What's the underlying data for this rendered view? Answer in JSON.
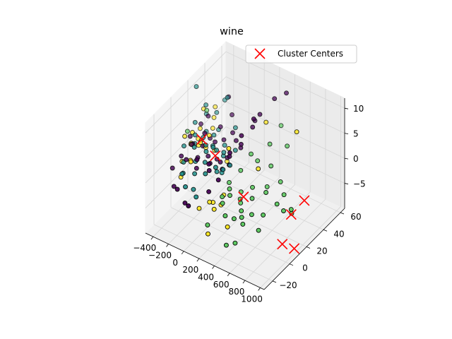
{
  "chart_data": {
    "type": "scatter",
    "projection": "3d",
    "title": "wine",
    "xlabel": "",
    "ylabel": "",
    "zlabel": "",
    "xlim": [
      -500,
      1050
    ],
    "ylim": [
      -30,
      65
    ],
    "zlim": [
      -10,
      12
    ],
    "x_ticks": [
      "−400",
      "−200",
      "0",
      "200",
      "400",
      "600",
      "800",
      "1000"
    ],
    "y_ticks": [
      "−20",
      "0",
      "20",
      "40",
      "60"
    ],
    "z_ticks": [
      "−5",
      "0",
      "5",
      "10"
    ],
    "grid": true,
    "legend": {
      "position": "top-right",
      "entries": [
        "Cluster Centers"
      ]
    },
    "colors": {
      "cluster_0": "#440154",
      "cluster_1": "#21918c",
      "cluster_2": "#5ec962",
      "cluster_3": "#fde725",
      "marker_edge": "#000000",
      "centers": "#ff0000",
      "pane": "#f2f2f2",
      "grid": "#e0e0e0"
    },
    "series": [
      {
        "cluster": 3,
        "color": "#fde725",
        "points": [
          [
            -460,
            35,
            4
          ],
          [
            -450,
            30,
            1
          ],
          [
            -440,
            20,
            2
          ],
          [
            -430,
            10,
            3
          ],
          [
            -420,
            25,
            0
          ],
          [
            -420,
            45,
            3
          ],
          [
            -410,
            5,
            -1
          ],
          [
            -400,
            15,
            1
          ],
          [
            -395,
            30,
            -2
          ],
          [
            -380,
            40,
            2
          ],
          [
            -370,
            0,
            -3
          ],
          [
            -360,
            20,
            0
          ],
          [
            -350,
            10,
            2
          ],
          [
            -340,
            35,
            1
          ],
          [
            -320,
            25,
            -1
          ],
          [
            -300,
            5,
            0
          ],
          [
            -280,
            15,
            2
          ],
          [
            -260,
            30,
            -2
          ],
          [
            -240,
            0,
            1
          ],
          [
            -220,
            20,
            3
          ],
          [
            50,
            0,
            -5
          ],
          [
            60,
            -5,
            -4
          ],
          [
            80,
            10,
            -5
          ],
          [
            100,
            5,
            -6
          ],
          [
            120,
            -5,
            -5
          ],
          [
            -100,
            30,
            -3
          ],
          [
            -20,
            -10,
            -5
          ],
          [
            200,
            5,
            6
          ],
          [
            300,
            40,
            6
          ],
          [
            150,
            -15,
            -8
          ],
          [
            350,
            -10,
            -6
          ],
          [
            420,
            20,
            1
          ],
          [
            700,
            40,
            7
          ]
        ]
      },
      {
        "cluster": 2,
        "color": "#5ec962",
        "points": [
          [
            -450,
            15,
            3
          ],
          [
            -420,
            35,
            4
          ],
          [
            -380,
            25,
            0
          ],
          [
            150,
            10,
            -2
          ],
          [
            170,
            0,
            -3
          ],
          [
            190,
            20,
            -1
          ],
          [
            210,
            5,
            -2
          ],
          [
            230,
            -5,
            -3
          ],
          [
            250,
            15,
            -4
          ],
          [
            270,
            0,
            -2
          ],
          [
            300,
            10,
            -5
          ],
          [
            320,
            -10,
            -4
          ],
          [
            350,
            5,
            -3
          ],
          [
            380,
            -5,
            -5
          ],
          [
            400,
            15,
            -2
          ],
          [
            420,
            0,
            -4
          ],
          [
            450,
            10,
            -3
          ],
          [
            480,
            -5,
            -4
          ],
          [
            500,
            5,
            -5
          ],
          [
            520,
            20,
            -3
          ],
          [
            550,
            -10,
            -4
          ],
          [
            300,
            30,
            0
          ],
          [
            350,
            40,
            2
          ],
          [
            200,
            -20,
            -5
          ],
          [
            420,
            35,
            -1
          ],
          [
            480,
            25,
            -3
          ],
          [
            600,
            30,
            -2
          ],
          [
            650,
            5,
            -4
          ],
          [
            700,
            25,
            -3
          ],
          [
            500,
            -25,
            -6
          ],
          [
            560,
            -20,
            -6
          ],
          [
            700,
            -5,
            -5
          ],
          [
            720,
            15,
            -3
          ],
          [
            750,
            20,
            -5
          ],
          [
            800,
            25,
            -6
          ],
          [
            850,
            20,
            -4
          ],
          [
            520,
            45,
            2
          ],
          [
            330,
            55,
            3
          ],
          [
            270,
            25,
            2
          ]
        ]
      },
      {
        "cluster": 1,
        "color": "#21918c",
        "points": [
          [
            -480,
            40,
            2
          ],
          [
            -460,
            25,
            3
          ],
          [
            -440,
            10,
            1
          ],
          [
            -430,
            35,
            5
          ],
          [
            -410,
            20,
            0
          ],
          [
            -400,
            45,
            2
          ],
          [
            -390,
            5,
            -1
          ],
          [
            -370,
            30,
            1
          ],
          [
            -350,
            15,
            3
          ],
          [
            -340,
            0,
            -2
          ],
          [
            -320,
            40,
            0
          ],
          [
            -300,
            20,
            2
          ],
          [
            -290,
            10,
            -1
          ],
          [
            -270,
            30,
            1
          ],
          [
            -250,
            5,
            3
          ],
          [
            -230,
            25,
            0
          ],
          [
            -210,
            15,
            2
          ],
          [
            -190,
            0,
            -1
          ],
          [
            -170,
            20,
            1
          ],
          [
            -150,
            10,
            2
          ],
          [
            -130,
            30,
            0
          ],
          [
            -110,
            5,
            1
          ],
          [
            -90,
            25,
            -1
          ],
          [
            -70,
            15,
            2
          ],
          [
            -50,
            0,
            0
          ],
          [
            -30,
            20,
            1
          ],
          [
            -10,
            10,
            -1
          ],
          [
            10,
            30,
            0
          ],
          [
            30,
            5,
            1
          ],
          [
            50,
            20,
            -1
          ],
          [
            70,
            10,
            0
          ],
          [
            -260,
            45,
            6
          ],
          [
            -500,
            30,
            9
          ],
          [
            -350,
            50,
            4
          ],
          [
            -100,
            40,
            2
          ],
          [
            0,
            15,
            -2
          ],
          [
            -200,
            -10,
            -2
          ],
          [
            -150,
            -5,
            -3
          ],
          [
            -60,
            -10,
            -3
          ],
          [
            -300,
            -5,
            -1
          ]
        ]
      },
      {
        "cluster": 0,
        "color": "#440154",
        "points": [
          [
            -470,
            20,
            1
          ],
          [
            -440,
            30,
            2
          ],
          [
            -420,
            5,
            0
          ],
          [
            -400,
            35,
            3
          ],
          [
            -380,
            15,
            1
          ],
          [
            -360,
            25,
            -1
          ],
          [
            -340,
            10,
            2
          ],
          [
            -320,
            30,
            0
          ],
          [
            -300,
            0,
            1
          ],
          [
            -280,
            20,
            3
          ],
          [
            -260,
            10,
            0
          ],
          [
            -240,
            35,
            2
          ],
          [
            -220,
            5,
            -1
          ],
          [
            -200,
            25,
            1
          ],
          [
            -180,
            15,
            0
          ],
          [
            -160,
            0,
            2
          ],
          [
            -140,
            30,
            1
          ],
          [
            -120,
            20,
            -1
          ],
          [
            -100,
            10,
            0
          ],
          [
            -80,
            35,
            2
          ],
          [
            -60,
            5,
            1
          ],
          [
            -40,
            25,
            -1
          ],
          [
            -20,
            15,
            0
          ],
          [
            0,
            0,
            1
          ],
          [
            20,
            30,
            2
          ],
          [
            40,
            20,
            -1
          ],
          [
            60,
            10,
            0
          ],
          [
            80,
            30,
            1
          ],
          [
            100,
            15,
            2
          ],
          [
            120,
            0,
            0
          ],
          [
            140,
            25,
            3
          ],
          [
            160,
            10,
            4
          ],
          [
            180,
            35,
            5
          ],
          [
            200,
            20,
            6
          ],
          [
            220,
            40,
            7
          ],
          [
            250,
            30,
            8
          ],
          [
            -480,
            0,
            -2
          ],
          [
            -350,
            -10,
            -3
          ],
          [
            -250,
            -15,
            -2
          ],
          [
            -150,
            -15,
            -4
          ],
          [
            -50,
            -20,
            -3
          ],
          [
            50,
            -5,
            -2
          ],
          [
            -200,
            45,
            3
          ],
          [
            100,
            45,
            4
          ],
          [
            300,
            50,
            9
          ],
          [
            400,
            55,
            10
          ],
          [
            -300,
            50,
            5
          ]
        ]
      }
    ],
    "centers": [
      [
        -340,
        22,
        1
      ],
      [
        -120,
        18,
        0
      ],
      [
        360,
        8,
        -3
      ],
      [
        850,
        20,
        -5
      ],
      [
        800,
        40,
        -6
      ],
      [
        900,
        5,
        -8
      ],
      [
        1000,
        10,
        -9
      ]
    ]
  }
}
